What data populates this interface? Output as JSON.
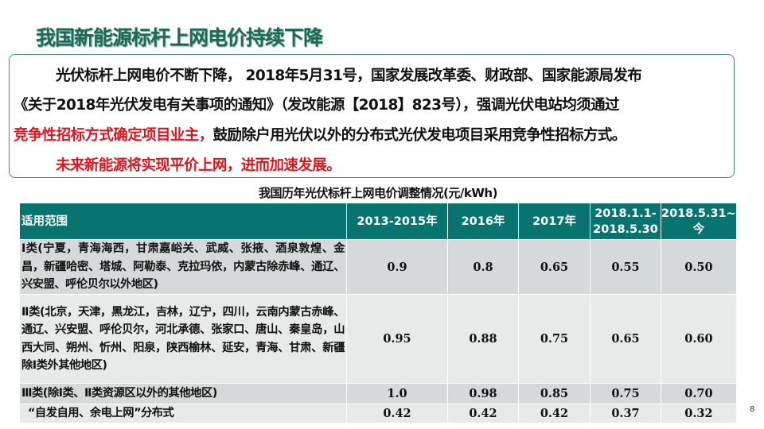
{
  "title": "我国新能源标杆上网电价持续下降",
  "paragraph": {
    "line1": "光伏标杆上网电价不断下降， 2018年5月31号，国家发展改革委、财政部、国家能源局发布",
    "line2": "《关于2018年光伏发电有关事项的通知》（发改能源【2018】823号），强调光伏电站均须通过",
    "line3_red": "竞争性招标方式确定项目业主，",
    "line3_rest": "鼓励除户用光伏以外的分布式光伏发电项目采用竞争性招标方式。",
    "line4_red": "未来新能源将实现平价上网，进而加速发展。"
  },
  "table": {
    "caption": "我国历年光伏标杆上网电价调整情况(元/kWh)",
    "headers": [
      "适用范围",
      "2013-2015年",
      "2016年",
      "2017年",
      "2018.1.1-2018.5.30",
      "2018.5.31~今"
    ],
    "rows": [
      {
        "region": "Ⅰ类(宁夏，青海海西，甘肃嘉峪关、武威、张掖、酒泉敦煌、金昌，新疆哈密、塔城、阿勒泰、克拉玛依，内蒙古除赤峰、通辽、兴安盟、呼伦贝尔以外地区)",
        "values": [
          "0.9",
          "0.8",
          "0.65",
          "0.55",
          "0.50"
        ]
      },
      {
        "region": "Ⅱ类(北京，天津，黑龙江，吉林，辽宁，四川，云南内蒙古赤峰、通辽、兴安盟、呼伦贝尔，河北承德、张家口、唐山、秦皇岛，山西大同、朔州、忻州、阳泉，陕西榆林、延安，青海、甘肃、新疆除Ⅰ类外其他地区)",
        "values": [
          "0.95",
          "0.88",
          "0.75",
          "0.65",
          "0.60"
        ]
      },
      {
        "region": "Ⅲ类(除Ⅰ类、Ⅱ类资源区以外的其他地区)",
        "values": [
          "1.0",
          "0.98",
          "0.85",
          "0.75",
          "0.70"
        ]
      },
      {
        "region": "“自发自用、余电上网”分布式",
        "values": [
          "0.42",
          "0.42",
          "0.42",
          "0.37",
          "0.32"
        ]
      }
    ]
  },
  "page_number": "8",
  "colors": {
    "header": "#087470",
    "title": "#1c6b57",
    "highlight": "#e0141c"
  }
}
